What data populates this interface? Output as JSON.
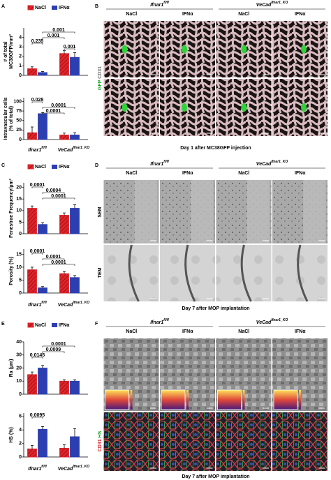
{
  "letters": [
    "A",
    "B",
    "C",
    "D",
    "E",
    "F"
  ],
  "legend": {
    "nacl": "NaCl",
    "ifn": "IFNα"
  },
  "groups": [
    {
      "name": "Ifnar1",
      "sup": "fl/fl"
    },
    {
      "name": "VeCad",
      "sup": "Ifnar1_KO"
    }
  ],
  "charts": [
    {
      "ylabel": [
        "# of total",
        "MC38GFP/mm²"
      ],
      "ylim": [
        0,
        5
      ],
      "yticks": [
        0,
        1,
        2,
        3,
        4
      ],
      "values": [
        0.7,
        0.3,
        2.3,
        1.9
      ],
      "errors": [
        0.2,
        0.1,
        0.3,
        0.5
      ],
      "pvalues": [
        "0.001",
        "0.001",
        "0.235",
        "0.001"
      ]
    },
    {
      "ylabel": [
        "Intravascular cells",
        "(% of total)"
      ],
      "ylim": [
        0,
        110
      ],
      "yticks": [
        0,
        25,
        50,
        75,
        100
      ],
      "values": [
        18,
        68,
        12,
        12
      ],
      "errors": [
        15,
        3,
        5,
        6
      ],
      "pvalues": [
        "0.028",
        "0.0001",
        "0.0001"
      ]
    },
    {
      "ylabel": [
        "Fenestrae Frequency/µm²"
      ],
      "ylim": [
        0,
        22
      ],
      "yticks": [
        0,
        5,
        10,
        15,
        20
      ],
      "values": [
        11,
        4,
        8,
        11
      ],
      "errors": [
        1,
        0.8,
        1,
        1.5
      ],
      "pvalues": [
        "0.0001",
        "0.0004",
        "0.0001"
      ]
    },
    {
      "ylabel": [
        "Porosity (%)"
      ],
      "ylim": [
        0,
        17
      ],
      "yticks": [
        0,
        5,
        10,
        15
      ],
      "values": [
        9,
        2,
        7.5,
        6
      ],
      "errors": [
        1,
        0.5,
        0.8,
        0.8
      ],
      "pvalues": [
        "0.0001",
        "0.0001",
        "0.0001"
      ]
    },
    {
      "ylabel": [
        "Ra (µm)"
      ],
      "ylim": [
        0,
        40
      ],
      "yticks": [
        0,
        10,
        20,
        30,
        40
      ],
      "values": [
        15,
        20,
        10,
        10
      ],
      "errors": [
        2,
        2,
        1,
        1
      ],
      "pvalues": [
        "0.0001",
        "0.0009",
        "0.0145"
      ]
    },
    {
      "ylabel": [
        "HS (%)"
      ],
      "ylim": [
        0,
        6.5
      ],
      "yticks": [
        0,
        2,
        4,
        6
      ],
      "values": [
        1.2,
        4.1,
        1.3,
        3.0
      ],
      "errors": [
        0.5,
        0.4,
        0.5,
        1.2
      ],
      "pvalues": [
        "0.0095"
      ]
    }
  ],
  "images": [
    {
      "side_labels": [
        "GFP",
        "CD31"
      ],
      "caption": "Day 1 after MC38GFP injection"
    },
    {
      "side_labels": [
        "SEM",
        "TEM"
      ],
      "caption": "Day 7 after MOP implantation"
    },
    {
      "side_labels": [
        "CD31",
        "HS"
      ],
      "caption": "Day 7 after MOP implantation"
    }
  ]
}
